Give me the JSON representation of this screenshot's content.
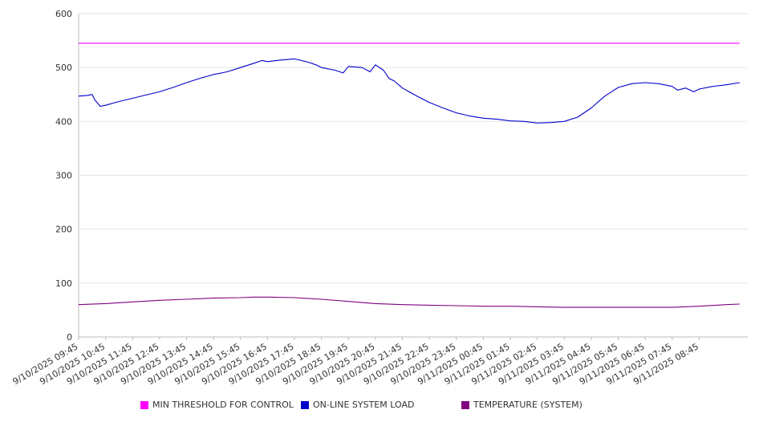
{
  "chart_data": {
    "type": "line",
    "ylim": [
      0,
      600
    ],
    "yticks": [
      0,
      100,
      200,
      300,
      400,
      500,
      600
    ],
    "xtick_labels": [
      "9/10/2025 09:45",
      "9/10/2025 10:45",
      "9/10/2025 11:45",
      "9/10/2025 12:45",
      "9/10/2025 13:45",
      "9/10/2025 14:45",
      "9/10/2025 15:45",
      "9/10/2025 16:45",
      "9/10/2025 17:45",
      "9/10/2025 18:45",
      "9/10/2025 19:45",
      "9/10/2025 20:45",
      "9/10/2025 21:45",
      "9/10/2025 22:45",
      "9/10/2025 23:45",
      "9/11/2025 00:45",
      "9/11/2025 01:45",
      "9/11/2025 02:45",
      "9/11/2025 03:45",
      "9/11/2025 04:45",
      "9/11/2025 05:45",
      "9/11/2025 06:45",
      "9/11/2025 07:45",
      "9/11/2025 08:45"
    ],
    "grid": true,
    "legend_position": "bottom",
    "series": [
      {
        "name": "MIN THRESHOLD FOR CONTROL",
        "color": "#ff00ff",
        "x_hours": [
          0,
          24.5
        ],
        "values": [
          545,
          545
        ]
      },
      {
        "name": "ON-LINE SYSTEM LOAD",
        "color": "#0000cc",
        "x_hours": [
          0,
          0.3,
          0.5,
          0.6,
          0.8,
          1,
          1.5,
          2,
          2.5,
          3,
          3.5,
          4,
          4.5,
          5,
          5.5,
          6,
          6.5,
          6.8,
          7,
          7.5,
          8,
          8.5,
          8.8,
          9,
          9.5,
          9.8,
          10,
          10.5,
          10.8,
          11,
          11.3,
          11.5,
          11.7,
          12,
          12.5,
          13,
          13.5,
          14,
          14.5,
          15,
          15.5,
          16,
          16.5,
          17,
          17.5,
          18,
          18.5,
          19,
          19.5,
          20,
          20.5,
          21,
          21.5,
          22,
          22.2,
          22.5,
          22.8,
          23,
          23.5,
          24,
          24.5
        ],
        "values": [
          447,
          448,
          450,
          440,
          428,
          430,
          437,
          443,
          449,
          455,
          463,
          472,
          480,
          487,
          492,
          500,
          508,
          513,
          511,
          514,
          516,
          510,
          505,
          500,
          495,
          490,
          502,
          500,
          492,
          505,
          495,
          480,
          475,
          462,
          448,
          435,
          425,
          416,
          410,
          406,
          404,
          401,
          400,
          397,
          398,
          400,
          408,
          425,
          447,
          463,
          470,
          472,
          470,
          465,
          458,
          462,
          455,
          460,
          465,
          468,
          472
        ]
      },
      {
        "name": "TEMPERATURE (SYSTEM)",
        "color": "#800080",
        "x_hours": [
          0,
          1,
          2,
          3,
          4,
          5,
          6,
          6.5,
          7,
          8,
          9,
          10,
          11,
          12,
          13,
          14,
          15,
          16,
          17,
          18,
          19,
          20,
          21,
          22,
          23,
          24,
          24.5
        ],
        "values": [
          60,
          62,
          65,
          68,
          70,
          72,
          73,
          74,
          74,
          73,
          70,
          66,
          62,
          60,
          59,
          58,
          57,
          57,
          56,
          55,
          55,
          55,
          55,
          55,
          57,
          60,
          61
        ]
      }
    ]
  }
}
